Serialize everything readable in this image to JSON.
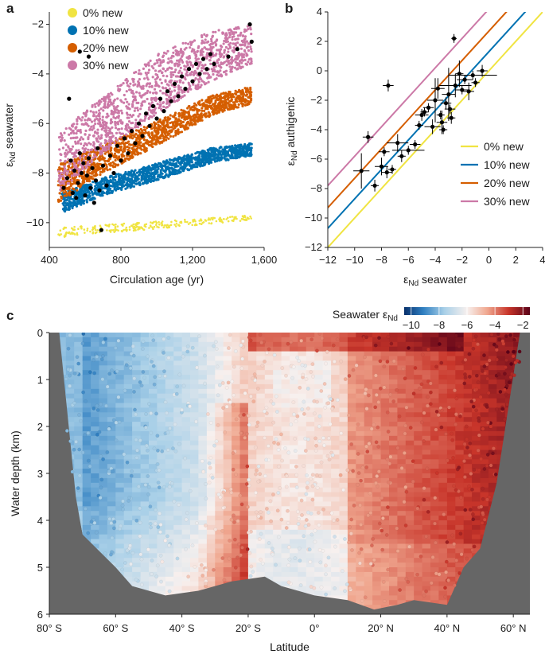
{
  "figure": {
    "panels": [
      "a",
      "b",
      "c"
    ]
  },
  "chart_data": [
    {
      "panel": "a",
      "type": "scatter",
      "title": "",
      "xlabel": "Circulation age (yr)",
      "ylabel_main": "ε",
      "ylabel_sub": "Nd",
      "ylabel_rest": " seawater",
      "xlim": [
        400,
        1600
      ],
      "ylim": [
        -11,
        -1.5
      ],
      "xticks": [
        400,
        800,
        1200,
        1600
      ],
      "xtick_labels": [
        "400",
        "800",
        "1,200",
        "1,600"
      ],
      "yticks": [
        -10,
        -8,
        -6,
        -4,
        -2
      ],
      "ytick_labels": [
        "−10",
        "−8",
        "−6",
        "−4",
        "−2"
      ],
      "series": [
        {
          "name": "0% new",
          "color": "#f0e442",
          "band": {
            "x": [
              450,
              1530
            ],
            "lo": [
              -10.6,
              -9.9
            ],
            "hi": [
              -10.2,
              -9.7
            ]
          }
        },
        {
          "name": "10% new",
          "color": "#0072b2",
          "band": {
            "x": [
              470,
              700,
              1000,
              1300,
              1530
            ],
            "lo": [
              -9.6,
              -8.9,
              -8.3,
              -7.6,
              -7.3
            ],
            "hi": [
              -8.8,
              -8.2,
              -7.6,
              -7.0,
              -6.8
            ]
          }
        },
        {
          "name": "20% new",
          "color": "#d55e00",
          "band": {
            "x": [
              450,
              700,
              1000,
              1300,
              1530
            ],
            "lo": [
              -9.2,
              -8.0,
              -6.9,
              -5.7,
              -5.2
            ],
            "hi": [
              -7.6,
              -6.9,
              -5.9,
              -4.9,
              -4.5
            ]
          }
        },
        {
          "name": "30% new",
          "color": "#cc79a7",
          "band": {
            "x": [
              450,
              700,
              1000,
              1300,
              1530
            ],
            "lo": [
              -8.8,
              -7.2,
              -5.6,
              -4.3,
              -3.6
            ],
            "hi": [
              -6.4,
              -4.9,
              -3.2,
              -2.3,
              -2.0
            ]
          }
        }
      ],
      "observations": {
        "name": "observations",
        "color": "#000000",
        "points": [
          [
            480,
            -8.6
          ],
          [
            500,
            -8.2
          ],
          [
            520,
            -7.5
          ],
          [
            530,
            -8.8
          ],
          [
            540,
            -7.9
          ],
          [
            550,
            -9.0
          ],
          [
            560,
            -8.4
          ],
          [
            570,
            -7.2
          ],
          [
            580,
            -8.0
          ],
          [
            590,
            -7.6
          ],
          [
            600,
            -8.9
          ],
          [
            610,
            -8.1
          ],
          [
            620,
            -7.4
          ],
          [
            630,
            -8.6
          ],
          [
            640,
            -7.8
          ],
          [
            650,
            -9.2
          ],
          [
            660,
            -8.3
          ],
          [
            670,
            -7.0
          ],
          [
            680,
            -8.7
          ],
          [
            690,
            -10.3
          ],
          [
            700,
            -7.7
          ],
          [
            720,
            -8.5
          ],
          [
            740,
            -7.3
          ],
          [
            760,
            -8.0
          ],
          [
            780,
            -6.9
          ],
          [
            800,
            -7.5
          ],
          [
            820,
            -6.6
          ],
          [
            840,
            -7.2
          ],
          [
            860,
            -6.3
          ],
          [
            880,
            -6.8
          ],
          [
            900,
            -6.0
          ],
          [
            920,
            -6.5
          ],
          [
            940,
            -5.6
          ],
          [
            960,
            -6.1
          ],
          [
            980,
            -5.3
          ],
          [
            1000,
            -5.8
          ],
          [
            1020,
            -5.0
          ],
          [
            1040,
            -5.5
          ],
          [
            1060,
            -4.7
          ],
          [
            1080,
            -5.1
          ],
          [
            1100,
            -4.4
          ],
          [
            1120,
            -4.9
          ],
          [
            1140,
            -4.1
          ],
          [
            1160,
            -4.6
          ],
          [
            1180,
            -3.8
          ],
          [
            1200,
            -4.3
          ],
          [
            1220,
            -3.6
          ],
          [
            1240,
            -4.0
          ],
          [
            1260,
            -3.4
          ],
          [
            1280,
            -3.8
          ],
          [
            1300,
            -3.2
          ],
          [
            1320,
            -3.6
          ],
          [
            1400,
            -3.3
          ],
          [
            1450,
            -3.0
          ],
          [
            1520,
            -2.0
          ],
          [
            570,
            -3.1
          ],
          [
            620,
            -3.3
          ],
          [
            510,
            -5.0
          ],
          [
            1530,
            -2.7
          ]
        ]
      }
    },
    {
      "panel": "b",
      "type": "scatter",
      "title": "",
      "xlabel_main": "ε",
      "xlabel_sub": "Nd",
      "xlabel_rest": " seawater",
      "ylabel_main": "ε",
      "ylabel_sub": "Nd",
      "ylabel_rest": " authigenic",
      "xlim": [
        -12,
        4
      ],
      "ylim": [
        -12,
        4
      ],
      "xticks": [
        -12,
        -10,
        -8,
        -6,
        -4,
        -2,
        0,
        2,
        4
      ],
      "xtick_labels": [
        "−12",
        "−10",
        "−8",
        "−6",
        "−4",
        "−2",
        "0",
        "2",
        "4"
      ],
      "yticks": [
        -12,
        -10,
        -8,
        -6,
        -4,
        -2,
        0,
        2,
        4
      ],
      "ytick_labels": [
        "−12",
        "−10",
        "−8",
        "−6",
        "−4",
        "−2",
        "0",
        "2",
        "4"
      ],
      "series": [
        {
          "name": "0% new",
          "color": "#f0e442",
          "offset": 0.0
        },
        {
          "name": "10% new",
          "color": "#0072b2",
          "offset": 1.3
        },
        {
          "name": "20% new",
          "color": "#d55e00",
          "offset": 2.7
        },
        {
          "name": "30% new",
          "color": "#cc79a7",
          "offset": 4.2
        }
      ],
      "observations": {
        "name": "observations",
        "color": "#000000",
        "points": [
          [
            -9.5,
            -6.8,
            0.6,
            1.2
          ],
          [
            -9,
            -4.5,
            0.4,
            0.4
          ],
          [
            -8.5,
            -7.8,
            0.3,
            0.4
          ],
          [
            -8,
            -6.5,
            0.5,
            0.6
          ],
          [
            -7.8,
            -5.5,
            0.4,
            0.3
          ],
          [
            -7.6,
            -6.9,
            0.4,
            0.4
          ],
          [
            -7.5,
            -1.0,
            0.4,
            0.4
          ],
          [
            -7.2,
            -6.7,
            0.3,
            0.3
          ],
          [
            -6.8,
            -4.9,
            0.8,
            0.6
          ],
          [
            -6.5,
            -5.8,
            0.3,
            0.4
          ],
          [
            -6,
            -5.4,
            1.2,
            0.3
          ],
          [
            -5.5,
            -5.0,
            0.4,
            0.3
          ],
          [
            -5,
            -3.0,
            0.5,
            0.4
          ],
          [
            -4.5,
            -2.5,
            0.4,
            0.3
          ],
          [
            -4.2,
            -3.8,
            0.6,
            0.5
          ],
          [
            -4,
            -2.0,
            0.6,
            1.5
          ],
          [
            -3.8,
            -1.2,
            0.5,
            0.7
          ],
          [
            -3.6,
            -3.0,
            0.3,
            0.3
          ],
          [
            -3.5,
            -3.5,
            0.4,
            0.8
          ],
          [
            -3.2,
            -2.2,
            0.4,
            0.4
          ],
          [
            -3.0,
            -1.6,
            0.5,
            1.8
          ],
          [
            -2.8,
            -3.2,
            0.3,
            0.4
          ],
          [
            -2.6,
            2.2,
            0.2,
            0.3
          ],
          [
            -2.5,
            -1.0,
            1.2,
            0.8
          ],
          [
            -2.2,
            -0.2,
            0.3,
            0.9
          ],
          [
            -2.0,
            -1.3,
            0.5,
            0.3
          ],
          [
            -1.8,
            -0.6,
            0.6,
            0.3
          ],
          [
            -1.5,
            -1.4,
            0.4,
            0.6
          ],
          [
            -1.2,
            -0.3,
            1.8,
            0.3
          ],
          [
            -1.0,
            -0.8,
            0.3,
            0.3
          ],
          [
            -0.5,
            0.0,
            0.4,
            0.4
          ],
          [
            -5.2,
            -3.7,
            0.3,
            0.3
          ],
          [
            -4.8,
            -2.8,
            0.3,
            0.3
          ],
          [
            -2.9,
            -2.6,
            0.4,
            0.3
          ],
          [
            -3.4,
            -4.0,
            0.3,
            0.3
          ]
        ]
      }
    },
    {
      "panel": "c",
      "type": "heatmap",
      "title": "",
      "xlabel": "Latitude",
      "ylabel": "Water depth (km)",
      "colorbar_label_main": "Seawater ε",
      "colorbar_label_sub": "Nd",
      "colorbar_range": [
        -10.5,
        -1.5
      ],
      "colorbar_ticks": [
        -10,
        -8,
        -6,
        -4,
        -2
      ],
      "colorbar_tick_labels": [
        "−10",
        "−8",
        "−6",
        "−4",
        "−2"
      ],
      "xlim": [
        -80,
        65
      ],
      "ylim": [
        0,
        6
      ],
      "xticks": [
        -80,
        -60,
        -40,
        -20,
        0,
        20,
        40,
        60
      ],
      "xtick_labels": [
        "80° S",
        "60° S",
        "40° S",
        "20° S",
        "0°",
        "20° N",
        "40° N",
        "60° N"
      ],
      "yticks": [
        0,
        1,
        2,
        3,
        4,
        5,
        6
      ],
      "ytick_labels": [
        "0",
        "1",
        "2",
        "3",
        "4",
        "5",
        "6"
      ],
      "seafloor_color": "#666666",
      "bathymetry": {
        "lat": [
          -80,
          -75,
          -70,
          -60,
          -55,
          -45,
          -35,
          -25,
          -15,
          -10,
          0,
          10,
          18,
          25,
          30,
          40,
          45,
          50,
          55,
          60,
          65
        ],
        "depth": [
          0.1,
          2.5,
          4.3,
          5.0,
          5.4,
          5.6,
          5.5,
          5.3,
          5.2,
          5.4,
          5.6,
          5.7,
          5.9,
          5.8,
          5.7,
          5.8,
          5.0,
          4.6,
          3.2,
          1.0,
          0.3
        ]
      }
    }
  ]
}
